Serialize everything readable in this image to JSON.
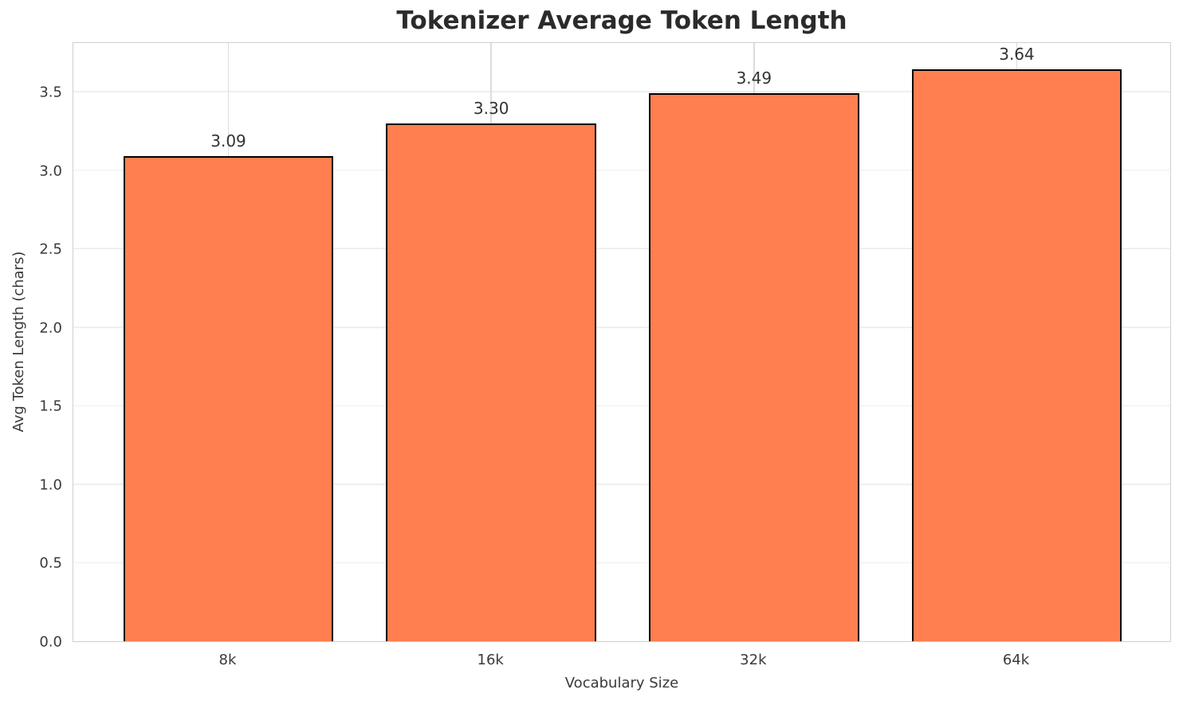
{
  "chart_data": {
    "type": "bar",
    "title": "Tokenizer Average Token Length",
    "xlabel": "Vocabulary Size",
    "ylabel": "Avg Token Length (chars)",
    "categories": [
      "8k",
      "16k",
      "32k",
      "64k"
    ],
    "values": [
      3.09,
      3.3,
      3.49,
      3.64
    ],
    "value_labels": [
      "3.09",
      "3.30",
      "3.49",
      "3.64"
    ],
    "ytick_labels": [
      "0.0",
      "0.5",
      "1.0",
      "1.5",
      "2.0",
      "2.5",
      "3.0",
      "3.5"
    ],
    "yticks": [
      0.0,
      0.5,
      1.0,
      1.5,
      2.0,
      2.5,
      3.0,
      3.5
    ],
    "ylim": [
      0,
      3.82
    ],
    "grid": true,
    "legend_visible": false,
    "bar_color": "#FF7F50",
    "bar_edge_color": "#000000",
    "grid_color_horizontal": "#efefef",
    "grid_color_vertical": "#dcdcdc",
    "spine_color": "#d0d0d0",
    "title_color": "#2b2b2b",
    "text_color": "#3a3a3a"
  }
}
